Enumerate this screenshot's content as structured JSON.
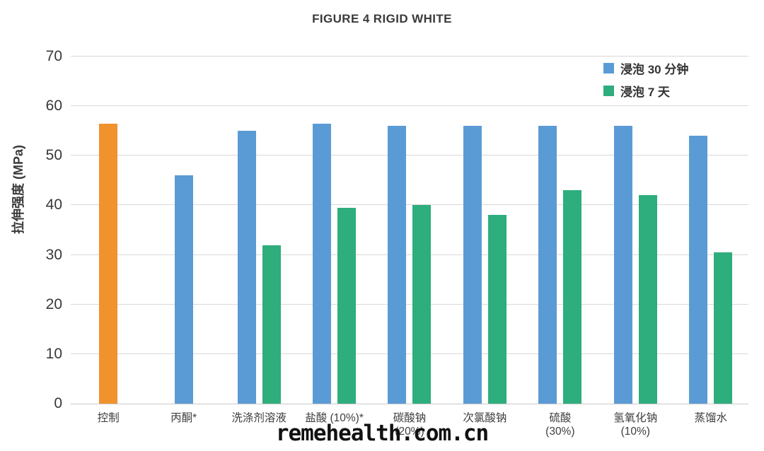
{
  "title": "FIGURE 4 RIGID WHITE",
  "watermark": "remehealth.com.cn",
  "chart_data": {
    "type": "bar",
    "title": "FIGURE 4 RIGID WHITE",
    "xlabel": "",
    "ylabel": "拉伸强度 (MPa)",
    "ylim": [
      0,
      70
    ],
    "ytick_step": 10,
    "yticks": [
      0,
      10,
      20,
      30,
      40,
      50,
      60,
      70
    ],
    "grid": true,
    "legend_position": "top-right",
    "categories": [
      {
        "label": "控制",
        "sub": ""
      },
      {
        "label": "丙酮*",
        "sub": ""
      },
      {
        "label": "洗涤剂溶液",
        "sub": ""
      },
      {
        "label": "盐酸 (10%)*",
        "sub": ""
      },
      {
        "label": "碳酸钠",
        "sub": "(20%)"
      },
      {
        "label": "次氯酸钠",
        "sub": ""
      },
      {
        "label": "硫酸",
        "sub": "(30%)"
      },
      {
        "label": "氢氧化钠",
        "sub": "(10%)"
      },
      {
        "label": "蒸馏水",
        "sub": ""
      }
    ],
    "series": [
      {
        "name": "浸泡 30 分钟",
        "color": "#5b9bd5",
        "values": [
          56.5,
          46,
          55,
          56.5,
          56,
          56,
          56,
          56,
          54
        ]
      },
      {
        "name": "浸泡 7 天",
        "color": "#2ead7d",
        "values": [
          null,
          null,
          32,
          39.5,
          40,
          38,
          43,
          42,
          30.5
        ]
      }
    ],
    "special_bars": [
      {
        "category_index": 0,
        "series_index": 0,
        "color": "#f0922d",
        "note": "control bar shown in orange"
      }
    ]
  },
  "colors": {
    "control_orange": "#f0922d",
    "series_blue": "#5b9bd5",
    "series_green": "#2ead7d"
  }
}
